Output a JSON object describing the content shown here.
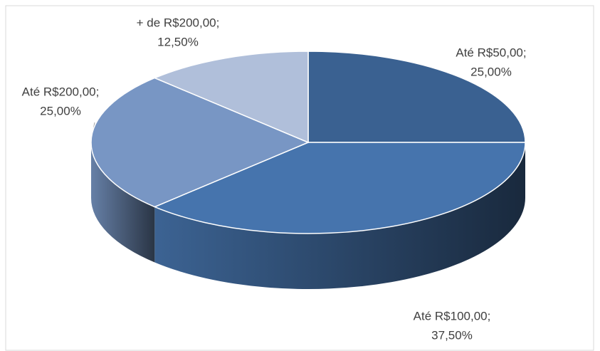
{
  "chart_data": {
    "type": "pie3d",
    "categories": [
      "Até R$50,00;",
      "Até R$100,00;",
      "Até R$200,00;",
      "+ de R$200,00;"
    ],
    "values": [
      25,
      37.5,
      25,
      12.5
    ],
    "value_labels": [
      "25,00%",
      "37,50%",
      "25,00%",
      "12,50%"
    ],
    "colors": [
      "#3a6191",
      "#4674ad",
      "#7896c4",
      "#b0bfda"
    ]
  }
}
